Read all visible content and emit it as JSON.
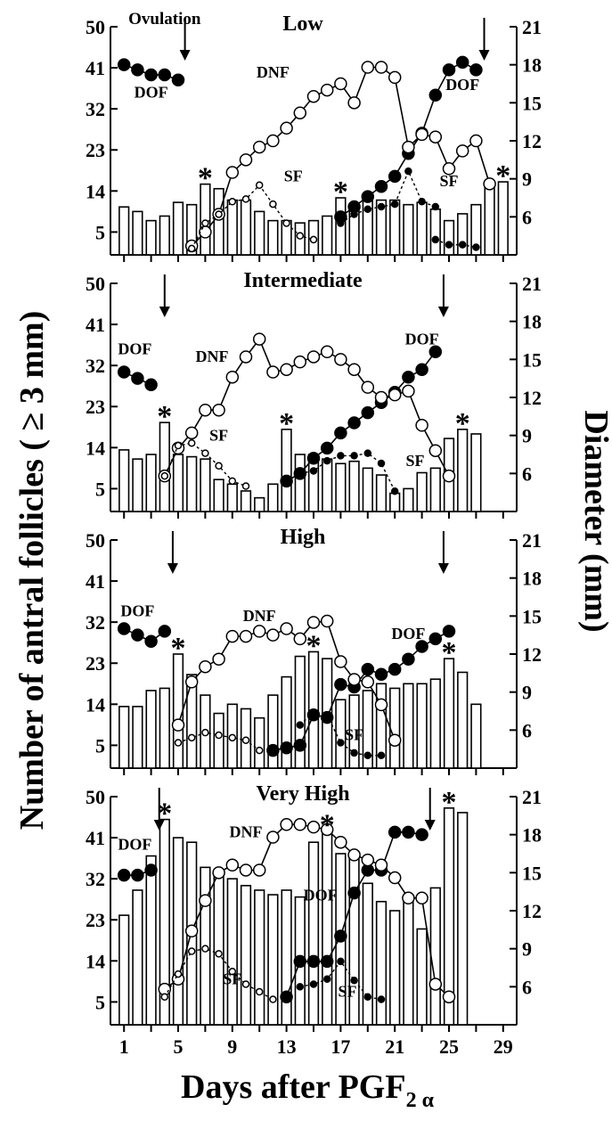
{
  "figure": {
    "y_left_label": "Number of antral follicles ( ≥ 3 mm)",
    "y_right_label": "Diameter (mm)",
    "x_label_main": "Days after PGF",
    "x_label_sub": "2 α",
    "x_ticks": [
      1,
      5,
      9,
      13,
      17,
      21,
      25,
      29
    ],
    "left_ticks": [
      5,
      14,
      23,
      32,
      41,
      50
    ],
    "right_ticks": [
      6,
      9,
      12,
      15,
      18,
      21
    ]
  },
  "chart_data": [
    {
      "type": "bar",
      "title": "Low",
      "xlim": [
        0,
        30
      ],
      "ylim_left": [
        0,
        50
      ],
      "ylim_right": [
        3,
        21
      ],
      "bars": {
        "x": [
          1,
          2,
          3,
          4,
          5,
          6,
          7,
          8,
          9,
          10,
          11,
          12,
          13,
          14,
          15,
          16,
          17,
          18,
          19,
          20,
          21,
          22,
          23,
          24,
          25,
          26,
          27,
          28,
          29
        ],
        "values": [
          10.5,
          9.5,
          7.5,
          8.5,
          11.5,
          11,
          15.5,
          14.5,
          12,
          12,
          9.5,
          7.5,
          7.5,
          7,
          7.5,
          8.5,
          12.5,
          10.5,
          12,
          12,
          12,
          11,
          11.5,
          10,
          7.5,
          9,
          11,
          15,
          16
        ]
      },
      "series": [
        {
          "name": "DOF",
          "marker": "filled",
          "style": "solid",
          "x": [
            1,
            2,
            3,
            4,
            5
          ],
          "y": [
            18,
            17.6,
            17.2,
            17.2,
            16.8
          ]
        },
        {
          "name": "DOF",
          "marker": "filled",
          "style": "solid",
          "x": [
            17,
            18,
            19,
            20,
            21,
            22,
            23,
            24,
            25,
            26,
            27
          ],
          "y": [
            6,
            6.8,
            7.6,
            8.4,
            9.2,
            11,
            12.6,
            15.6,
            17.6,
            18.2,
            17.6
          ]
        },
        {
          "name": "DNF",
          "marker": "open",
          "style": "solid",
          "x": [
            6,
            7,
            8,
            9,
            10,
            11,
            12,
            13,
            14,
            15,
            16,
            17,
            18,
            19,
            20,
            21,
            22,
            23,
            24,
            25,
            26,
            27,
            28
          ],
          "y": [
            3.7,
            4.8,
            6.2,
            9.5,
            10.5,
            11.5,
            12,
            13,
            14.2,
            15.5,
            16,
            16.5,
            15,
            17.8,
            17.8,
            17,
            11.5,
            12.5,
            12.3,
            9.8,
            11.2,
            12,
            8.6
          ]
        },
        {
          "name": "SF",
          "marker": "open-small",
          "style": "dashed",
          "x": [
            6,
            7,
            8,
            9,
            10,
            11,
            12,
            13,
            14,
            15
          ],
          "y": [
            3.5,
            5.5,
            6.2,
            7.2,
            7.4,
            8.5,
            7,
            5.5,
            4.5,
            4.2
          ]
        },
        {
          "name": "SF",
          "marker": "filled-small",
          "style": "dashed",
          "x": [
            17,
            18,
            19,
            20,
            21,
            22,
            23,
            24
          ],
          "y": [
            5.5,
            6.2,
            6.6,
            6.8,
            7,
            9.6,
            7.2,
            6.8
          ]
        },
        {
          "name": "",
          "marker": "filled-small",
          "style": "dashed",
          "x": [
            24,
            25,
            26,
            27
          ],
          "y": [
            4.2,
            3.8,
            3.8,
            3.6
          ]
        }
      ],
      "annotations": [
        {
          "text": "Ovulation",
          "x": 4,
          "y_right": 21.2
        },
        {
          "text": "DOF",
          "x": 3,
          "y_right": 15.4
        },
        {
          "text": "DNF",
          "x": 12,
          "y_right": 17
        },
        {
          "text": "SF",
          "x": 13.5,
          "y_right": 8.8
        },
        {
          "text": "DOF",
          "x": 26,
          "y_right": 16
        },
        {
          "text": "SF",
          "x": 25,
          "y_right": 8.4
        }
      ],
      "arrows": [
        5.5,
        27.6
      ],
      "stars": [
        {
          "x": 7,
          "y": 15.5
        },
        {
          "x": 17,
          "y": 12.5
        },
        {
          "x": 29,
          "y": 16
        }
      ]
    },
    {
      "type": "bar",
      "title": "Intermediate",
      "xlim": [
        0,
        30
      ],
      "ylim_left": [
        0,
        50
      ],
      "ylim_right": [
        3,
        21
      ],
      "bars": {
        "x": [
          1,
          2,
          3,
          4,
          5,
          6,
          7,
          8,
          9,
          10,
          11,
          12,
          13,
          14,
          15,
          16,
          17,
          18,
          19,
          20,
          21,
          22,
          23,
          24,
          25,
          26,
          27
        ],
        "values": [
          13.5,
          11.5,
          12.5,
          19.5,
          12.5,
          12,
          11.5,
          7,
          6,
          4.5,
          3,
          6,
          18,
          12.5,
          12.5,
          11.5,
          10.5,
          11,
          9.5,
          8,
          4,
          5,
          8.5,
          9.5,
          16,
          18,
          17
        ]
      },
      "series": [
        {
          "name": "DOF",
          "marker": "filled",
          "style": "solid",
          "x": [
            1,
            2,
            3
          ],
          "y": [
            14,
            13.5,
            13
          ]
        },
        {
          "name": "DOF",
          "marker": "filled",
          "style": "solid",
          "x": [
            13,
            14,
            15,
            16,
            17,
            18,
            19,
            20,
            21,
            22,
            23,
            24
          ],
          "y": [
            5.4,
            6,
            7.2,
            8,
            9.2,
            10,
            10.8,
            11.6,
            12.4,
            13.6,
            14.2,
            15.6
          ]
        },
        {
          "name": "DNF",
          "marker": "open",
          "style": "solid",
          "x": [
            4,
            5,
            6,
            7,
            8,
            9,
            10,
            11,
            12,
            13,
            14,
            15,
            16,
            17,
            18,
            19,
            20,
            21,
            22,
            23,
            24,
            25
          ],
          "y": [
            5.8,
            8,
            9.2,
            11,
            11,
            13.6,
            15.2,
            16.6,
            14,
            14.2,
            14.8,
            15.2,
            15.6,
            15,
            14.2,
            12.8,
            12,
            12.2,
            12.5,
            9.8,
            7.8,
            5.8
          ]
        },
        {
          "name": "SF",
          "marker": "open-small",
          "style": "dashed",
          "x": [
            4,
            5,
            6,
            7,
            8,
            9,
            10
          ],
          "y": [
            5.8,
            8.2,
            8.4,
            7.6,
            6.6,
            5.4,
            5
          ]
        },
        {
          "name": "SF",
          "marker": "filled-small",
          "style": "dashed",
          "x": [
            14,
            15,
            16,
            17,
            18,
            19,
            20,
            21
          ],
          "y": [
            6,
            6.2,
            7,
            7.4,
            7.4,
            7.6,
            6.8,
            4.6
          ]
        }
      ],
      "annotations": [
        {
          "text": "DOF",
          "x": 1.8,
          "y_right": 15.4
        },
        {
          "text": "DNF",
          "x": 7.5,
          "y_right": 14.8
        },
        {
          "text": "SF",
          "x": 8,
          "y_right": 8.6
        },
        {
          "text": "DOF",
          "x": 23,
          "y_right": 16.2
        },
        {
          "text": "SF",
          "x": 22.5,
          "y_right": 6.6
        }
      ],
      "arrows": [
        4,
        24.6
      ],
      "stars": [
        {
          "x": 4,
          "y": 19.5
        },
        {
          "x": 13,
          "y": 18
        },
        {
          "x": 26,
          "y": 18
        }
      ]
    },
    {
      "type": "bar",
      "title": "High",
      "xlim": [
        0,
        30
      ],
      "ylim_left": [
        0,
        50
      ],
      "ylim_right": [
        3,
        21
      ],
      "bars": {
        "x": [
          1,
          2,
          3,
          4,
          5,
          6,
          7,
          8,
          9,
          10,
          11,
          12,
          13,
          14,
          15,
          16,
          17,
          18,
          19,
          20,
          21,
          22,
          23,
          24,
          25,
          26,
          27
        ],
        "values": [
          13.5,
          13.5,
          17,
          17.5,
          25,
          20.5,
          16,
          12,
          14,
          13,
          11,
          16,
          20,
          24.5,
          25.5,
          24,
          15,
          16,
          17,
          18.5,
          17.5,
          18.5,
          18.5,
          19.5,
          24,
          21,
          14
        ]
      },
      "series": [
        {
          "name": "DOF",
          "marker": "filled",
          "style": "solid",
          "x": [
            1,
            2,
            3,
            4
          ],
          "y": [
            14,
            13.5,
            13,
            13.8
          ]
        },
        {
          "name": "DOF",
          "marker": "filled",
          "style": "solid",
          "x": [
            12,
            13,
            14,
            15,
            16,
            17,
            18,
            19,
            20,
            21,
            22,
            23,
            24,
            25
          ],
          "y": [
            4.4,
            4.6,
            4.8,
            7.2,
            7,
            9.6,
            9.4,
            10.8,
            10.4,
            10.8,
            11.6,
            12.6,
            13.2,
            13.8
          ]
        },
        {
          "name": "DNF",
          "marker": "open",
          "style": "solid",
          "x": [
            5,
            6,
            7,
            8,
            9,
            10,
            11,
            12,
            13,
            14,
            15,
            16,
            17,
            18,
            19,
            20,
            21
          ],
          "y": [
            6.4,
            9.8,
            11,
            11.6,
            13.4,
            13.4,
            13.8,
            13.5,
            14,
            13.2,
            14.5,
            14.6,
            11.4,
            10,
            9.8,
            8,
            5.2
          ]
        },
        {
          "name": "SF",
          "marker": "open-small",
          "style": "dashed",
          "x": [
            5,
            6,
            7,
            8,
            9,
            10,
            11
          ],
          "y": [
            5,
            5.4,
            5.8,
            5.6,
            5.4,
            5.2,
            4.4
          ]
        },
        {
          "name": "SF",
          "marker": "filled-small",
          "style": "dashed",
          "x": [
            14,
            15,
            16,
            17,
            18,
            19,
            20
          ],
          "y": [
            6.4,
            7.4,
            7.2,
            5,
            4.2,
            4,
            4
          ]
        }
      ],
      "annotations": [
        {
          "text": "DOF",
          "x": 2,
          "y_right": 15
        },
        {
          "text": "DNF",
          "x": 11,
          "y_right": 14.6
        },
        {
          "text": "SF",
          "x": 18,
          "y_right": 5.2
        },
        {
          "text": "DOF",
          "x": 22,
          "y_right": 13.2
        }
      ],
      "arrows": [
        4.6,
        24.6
      ],
      "stars": [
        {
          "x": 5,
          "y": 25
        },
        {
          "x": 15,
          "y": 25.5
        },
        {
          "x": 25,
          "y": 24
        }
      ]
    },
    {
      "type": "bar",
      "title": "Very High",
      "xlim": [
        0,
        30
      ],
      "ylim_left": [
        0,
        50
      ],
      "ylim_right": [
        3,
        21
      ],
      "bars": {
        "x": [
          1,
          2,
          3,
          4,
          5,
          6,
          7,
          8,
          9,
          10,
          11,
          12,
          13,
          14,
          15,
          16,
          17,
          18,
          19,
          20,
          21,
          22,
          23,
          24,
          25,
          26
        ],
        "values": [
          24,
          29.5,
          37,
          45,
          41,
          40,
          34.5,
          33,
          32,
          30.5,
          29.5,
          28.5,
          29.5,
          28,
          40,
          42.5,
          37.5,
          36.5,
          31,
          27,
          25,
          27,
          21,
          30,
          47.5,
          46.5
        ]
      },
      "series": [
        {
          "name": "DOF",
          "marker": "filled",
          "style": "solid",
          "x": [
            1,
            2,
            3
          ],
          "y": [
            14.8,
            14.8,
            15.2
          ]
        },
        {
          "name": "DOF",
          "marker": "filled",
          "style": "solid",
          "x": [
            13,
            14,
            15,
            16,
            17,
            18,
            19,
            20,
            21,
            22,
            23
          ],
          "y": [
            5.2,
            8,
            8,
            8,
            10,
            13.4,
            15.2,
            15.2,
            18.2,
            18.2,
            18
          ]
        },
        {
          "name": "DNF",
          "marker": "open",
          "style": "solid",
          "x": [
            4,
            5,
            6,
            7,
            8,
            9,
            10,
            11,
            12,
            13,
            14,
            15,
            16,
            17,
            18,
            19,
            20,
            21,
            22,
            23,
            24,
            25
          ],
          "y": [
            5.8,
            6.6,
            10.4,
            12.8,
            15,
            15.6,
            15.2,
            15.2,
            17.8,
            18.8,
            18.8,
            18.6,
            18.4,
            17.4,
            16.4,
            16,
            15.6,
            14.6,
            13,
            13,
            6.2,
            5.2
          ]
        },
        {
          "name": "SF",
          "marker": "open-small",
          "style": "dashed",
          "x": [
            4,
            5,
            6,
            7,
            8,
            9,
            10,
            11,
            12
          ],
          "y": [
            5.2,
            7,
            8.8,
            9,
            8.6,
            7.2,
            6.2,
            5.6,
            5
          ]
        },
        {
          "name": "SF",
          "marker": "filled-small",
          "style": "dashed",
          "x": [
            14,
            15,
            16,
            17,
            18,
            19,
            20
          ],
          "y": [
            6,
            6.2,
            6.6,
            8,
            6.5,
            5.2,
            5
          ]
        }
      ],
      "annotations": [
        {
          "text": "DOF",
          "x": 1.8,
          "y_right": 16.8
        },
        {
          "text": "DNF",
          "x": 10,
          "y_right": 17.8
        },
        {
          "text": "SF",
          "x": 9,
          "y_right": 6.2
        },
        {
          "text": "DOF",
          "x": 15.5,
          "y_right": 12.8
        },
        {
          "text": "SF",
          "x": 17.5,
          "y_right": 5.2
        }
      ],
      "arrows": [
        3.6,
        23.6
      ],
      "stars": [
        {
          "x": 4,
          "y": 45
        },
        {
          "x": 16,
          "y": 42.5
        },
        {
          "x": 25,
          "y": 47.5
        }
      ]
    }
  ]
}
